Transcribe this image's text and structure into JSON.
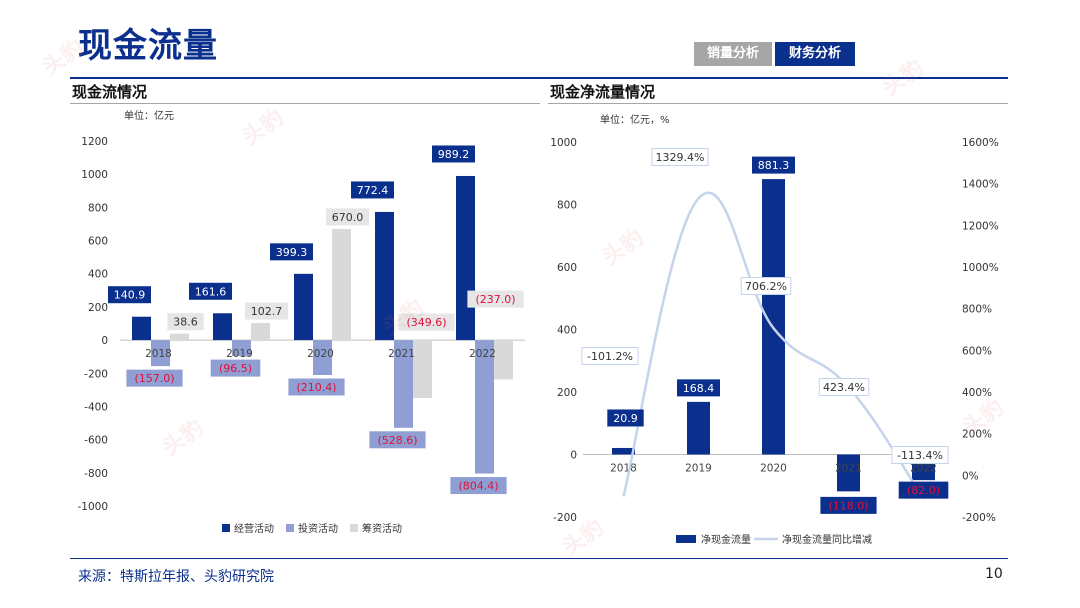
{
  "page": {
    "title": "现金流量",
    "tabs": [
      "销量分析",
      "财务分析"
    ],
    "source": "来源：特斯拉年报、头豹研究院",
    "page_number": "10",
    "watermark_text": "头豹"
  },
  "colors": {
    "operating": "#0a2f8c",
    "investing": "#8f9fd3",
    "financing": "#d9d9d9",
    "line": "#c5d3ec",
    "negative_text": "#e0103a",
    "label_box_border": "#c5d3ec"
  },
  "chart_data": [
    {
      "type": "bar",
      "title": "现金流情况",
      "unit": "单位：亿元",
      "categories": [
        "2018",
        "2019",
        "2020",
        "2021",
        "2022"
      ],
      "series": [
        {
          "name": "经营活动",
          "values": [
            140.9,
            161.6,
            399.3,
            772.4,
            989.2
          ]
        },
        {
          "name": "投资活动",
          "values": [
            -157.0,
            -96.5,
            -210.4,
            -528.6,
            -804.4
          ]
        },
        {
          "name": "筹资活动",
          "values": [
            38.6,
            102.7,
            670.0,
            -349.6,
            -237.0
          ]
        }
      ],
      "data_labels": [
        [
          "140.9",
          "161.6",
          "399.3",
          "772.4",
          "989.2"
        ],
        [
          "(157.0)",
          "(96.5)",
          "(210.4)",
          "(528.6)",
          "(804.4)"
        ],
        [
          "38.6",
          "102.7",
          "670.0",
          "(349.6)",
          "(237.0)"
        ]
      ],
      "ylim": [
        -1000,
        1200
      ],
      "yticks": [
        "-1000",
        "-800",
        "-600",
        "-400",
        "-200",
        "0",
        "200",
        "400",
        "600",
        "800",
        "1000",
        "1200"
      ],
      "yticks_values": [
        -1000,
        -800,
        -600,
        -400,
        -200,
        0,
        200,
        400,
        600,
        800,
        1000,
        1200
      ],
      "legend_position": "bottom",
      "grid": false
    },
    {
      "type": "bar+line",
      "title": "现金净流量情况",
      "unit": "单位：亿元，%",
      "categories": [
        "2018",
        "2019",
        "2020",
        "2021",
        "2022"
      ],
      "series": [
        {
          "name": "净现金流量",
          "values": [
            20.9,
            168.4,
            881.3,
            -118.0,
            -82.0
          ],
          "axis": "left"
        },
        {
          "name": "净现金流量同比增减",
          "values": [
            -101.2,
            1329.4,
            706.2,
            423.4,
            -113.4
          ],
          "axis": "right",
          "style": "smooth-line"
        }
      ],
      "data_labels": [
        [
          "20.9",
          "168.4",
          "881.3",
          "(118.0)",
          "(82.0)"
        ],
        [
          "-101.2%",
          "1329.4%",
          "706.2%",
          "423.4%",
          "-113.4%"
        ]
      ],
      "ylim": [
        -200,
        1000
      ],
      "yticks": [
        "-200",
        "0",
        "200",
        "400",
        "600",
        "800",
        "1000"
      ],
      "yticks_values": [
        -200,
        0,
        200,
        400,
        600,
        800,
        1000
      ],
      "y2lim": [
        -200,
        1600
      ],
      "y2ticks": [
        "-200%",
        "0%",
        "200%",
        "400%",
        "600%",
        "800%",
        "1000%",
        "1200%",
        "1400%",
        "1600%"
      ],
      "y2ticks_values": [
        -200,
        0,
        200,
        400,
        600,
        800,
        1000,
        1200,
        1400,
        1600
      ],
      "legend_position": "bottom",
      "grid": false
    }
  ]
}
